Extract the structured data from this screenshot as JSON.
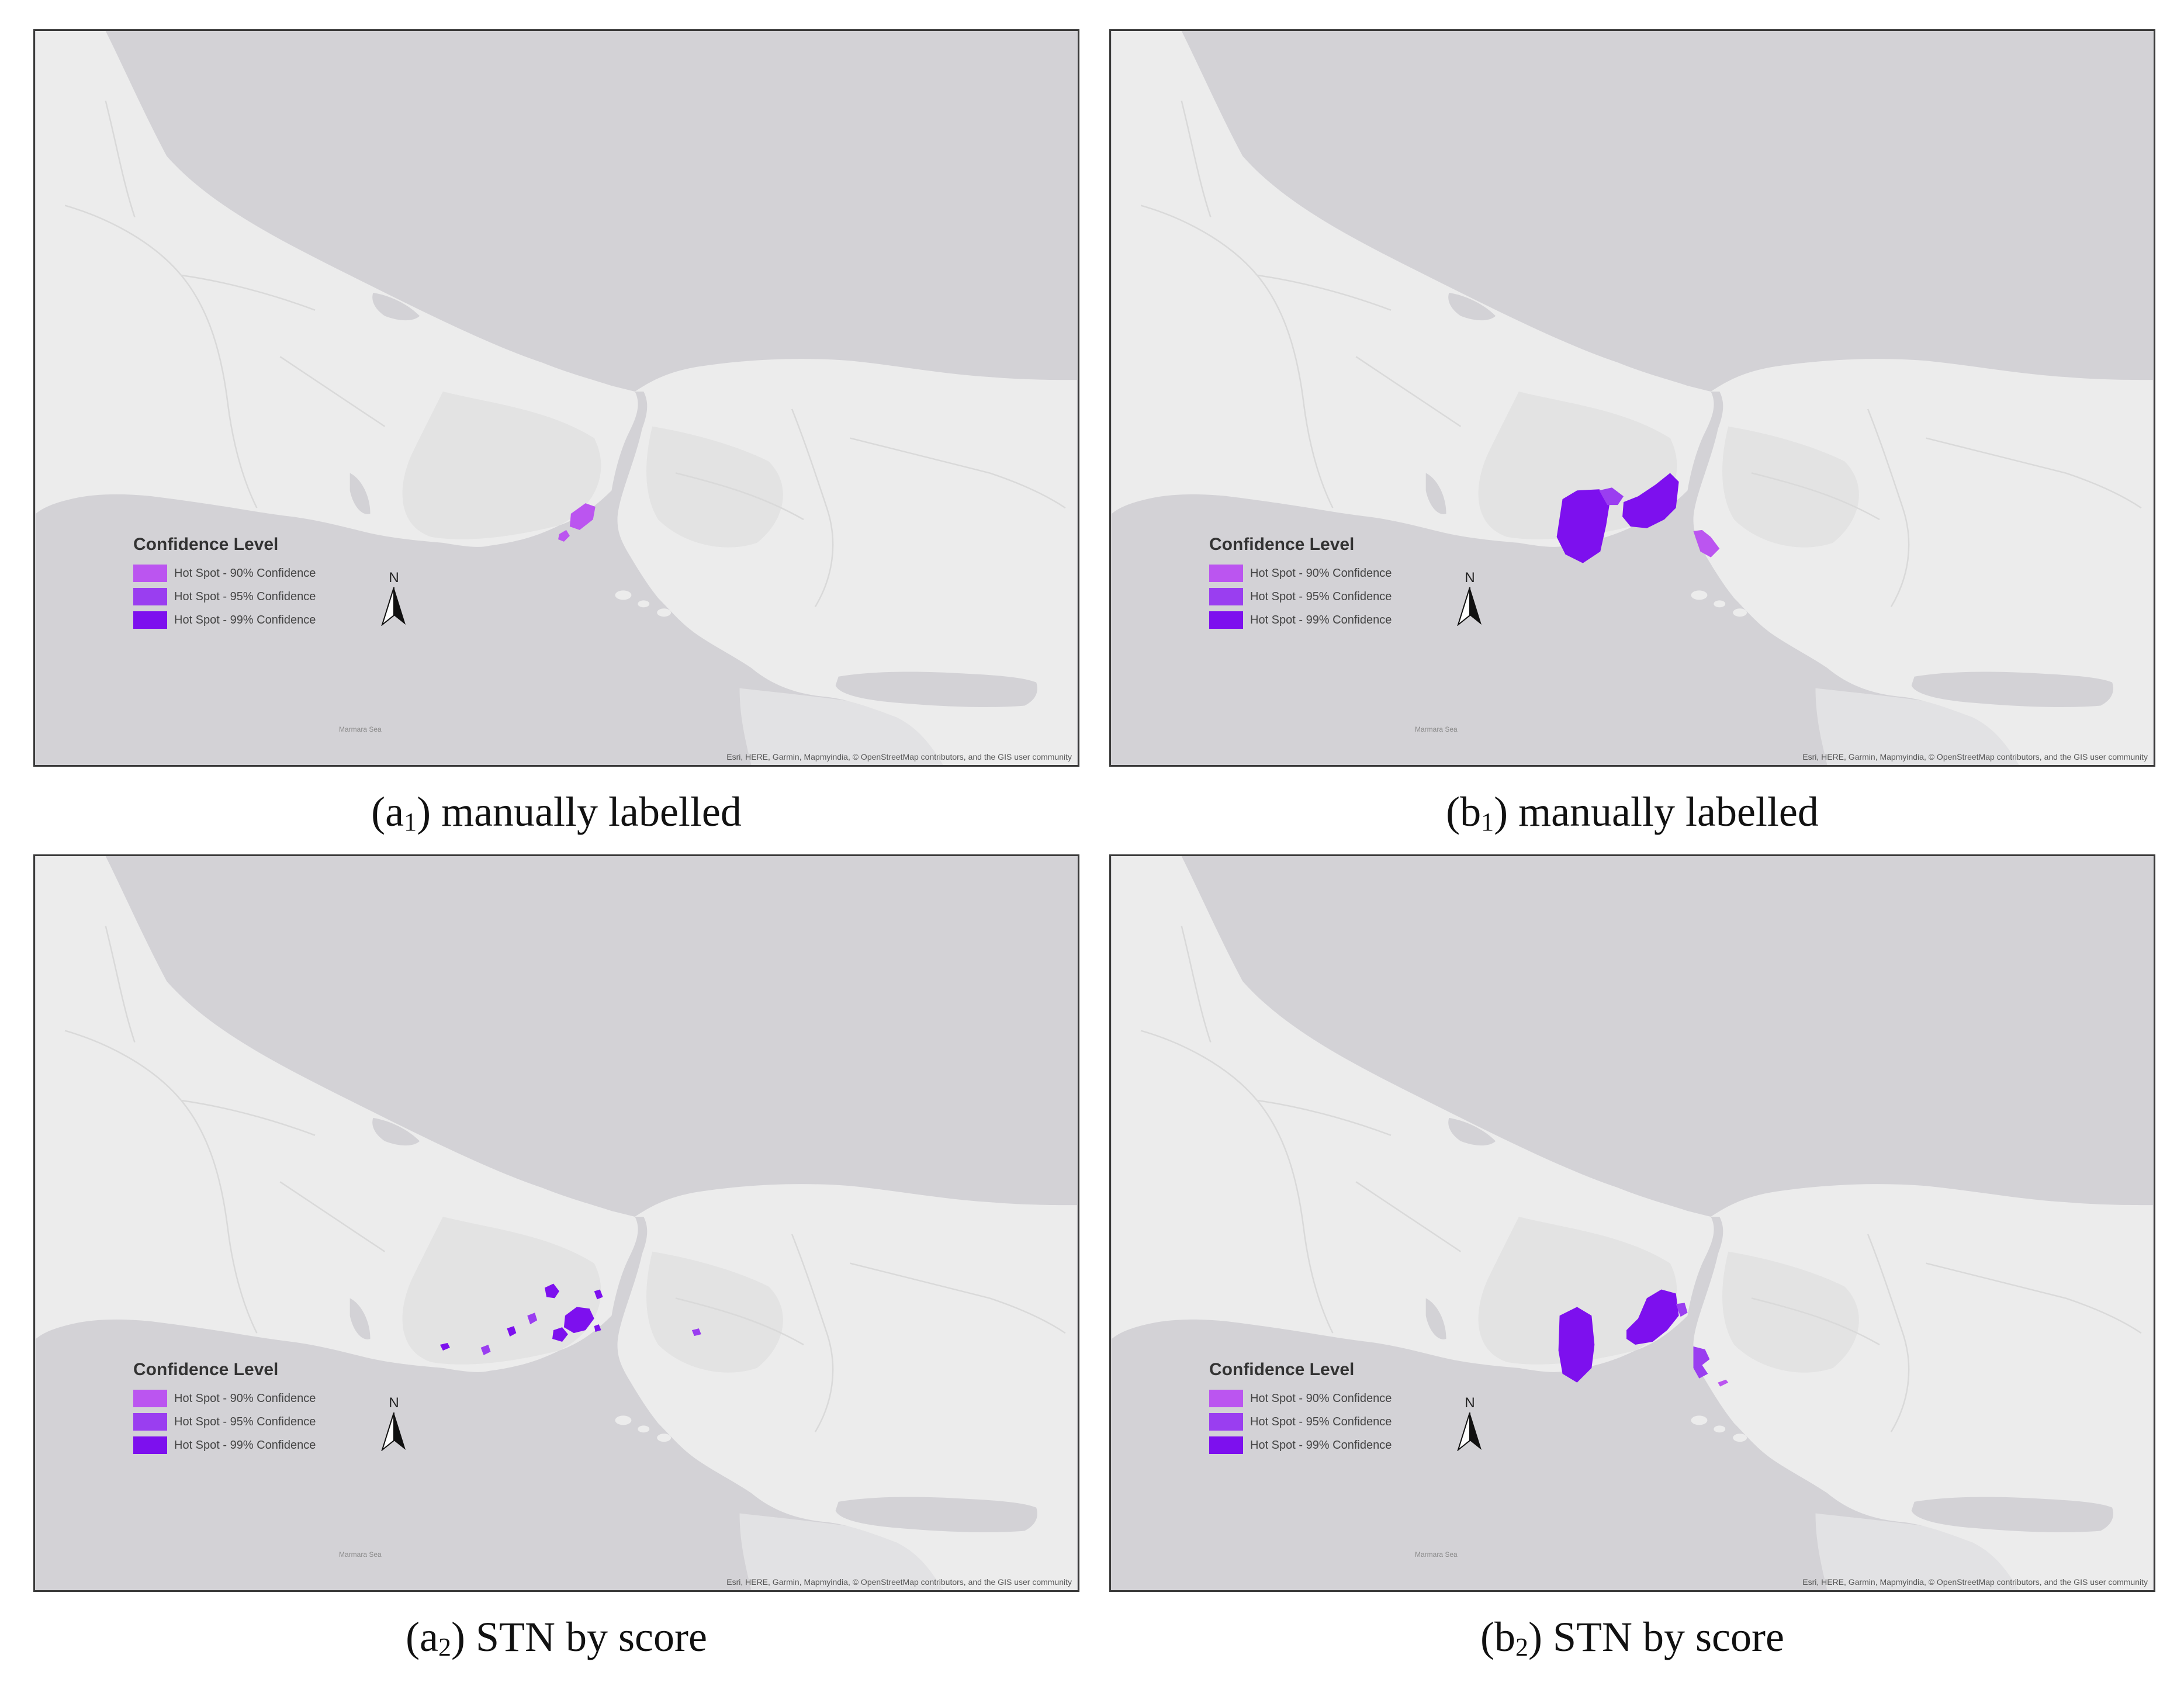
{
  "colors": {
    "sea": "#d3d2d6",
    "land": "#ececec",
    "urban": "#e3e3e3",
    "conf_90": "#bb55f0",
    "conf_95": "#9a3ef0",
    "conf_99": "#7d10ee"
  },
  "legend": {
    "title": "Confidence Level",
    "items": [
      {
        "label": "Hot Spot - 90% Confidence",
        "color": "#bb55f0"
      },
      {
        "label": "Hot Spot - 95% Confidence",
        "color": "#9a3ef0"
      },
      {
        "label": "Hot Spot - 99% Confidence",
        "color": "#7d10ee"
      }
    ]
  },
  "north_arrow": {
    "label": "N",
    "icon": "north-arrow-icon"
  },
  "attribution": "Esri, HERE, Garmin, Mapmyindia, © OpenStreetMap contributors, and the GIS user community",
  "sea_label": "Marmara Sea",
  "panels": [
    {
      "id": "a1",
      "caption_main": "a",
      "caption_sub": "1",
      "caption_text": "manually labelled"
    },
    {
      "id": "b1",
      "caption_main": "b",
      "caption_sub": "1",
      "caption_text": "manually labelled"
    },
    {
      "id": "a2",
      "caption_main": "a",
      "caption_sub": "2",
      "caption_text": "STN by score"
    },
    {
      "id": "b2",
      "caption_main": "b",
      "caption_sub": "2",
      "caption_text": "STN by score"
    }
  ]
}
